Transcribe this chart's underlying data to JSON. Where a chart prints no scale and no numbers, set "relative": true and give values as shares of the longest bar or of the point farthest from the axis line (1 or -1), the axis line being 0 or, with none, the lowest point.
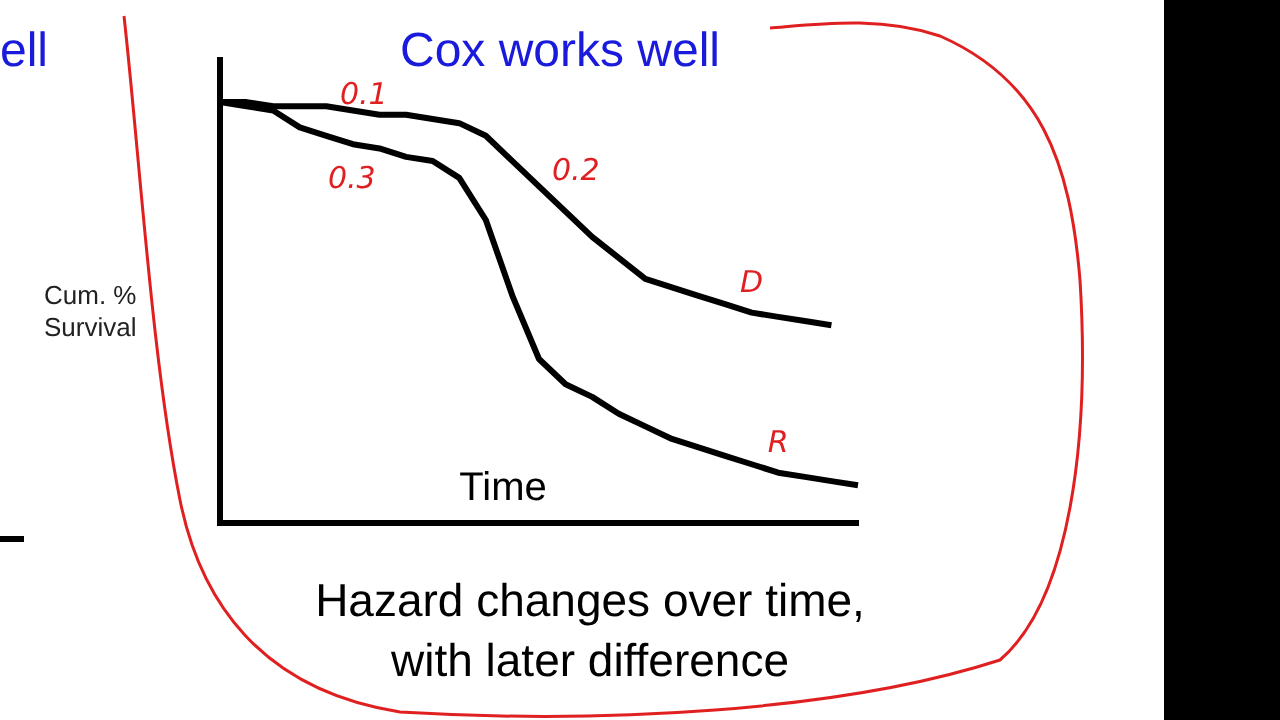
{
  "chart_data": {
    "type": "line",
    "title": "Cox works well",
    "xlabel": "Time",
    "ylabel": "Cum. %\nSurvival",
    "relative": true,
    "legend": false,
    "grid": false,
    "marker": "none",
    "line_style": "solid",
    "categories": [
      null,
      null,
      null,
      null,
      null,
      null,
      null,
      null,
      null,
      null,
      null,
      null,
      null,
      null,
      null,
      null,
      null,
      null,
      null,
      null,
      null,
      null,
      null,
      null,
      null
    ],
    "series": [
      {
        "name": "D",
        "color": "#000000",
        "values": [
          1,
          1,
          0.99,
          0.99,
          0.99,
          0.98,
          0.97,
          0.97,
          0.96,
          0.95,
          0.92,
          0.86,
          0.8,
          0.74,
          0.68,
          0.63,
          0.58,
          0.56,
          0.54,
          0.52,
          0.5,
          0.49,
          0.48,
          0.47,
          null
        ]
      },
      {
        "name": "R",
        "color": "#000000",
        "values": [
          1,
          0.99,
          0.98,
          0.94,
          0.92,
          0.9,
          0.89,
          0.87,
          0.86,
          0.82,
          0.72,
          0.54,
          0.39,
          0.33,
          0.3,
          0.26,
          0.23,
          0.2,
          0.18,
          0.16,
          0.14,
          0.12,
          0.11,
          0.1,
          0.09
        ]
      }
    ],
    "annotations": [
      "0.1",
      "0.2",
      "0.3",
      "ell",
      "Hazard changes over time,\nwith later difference"
    ]
  }
}
